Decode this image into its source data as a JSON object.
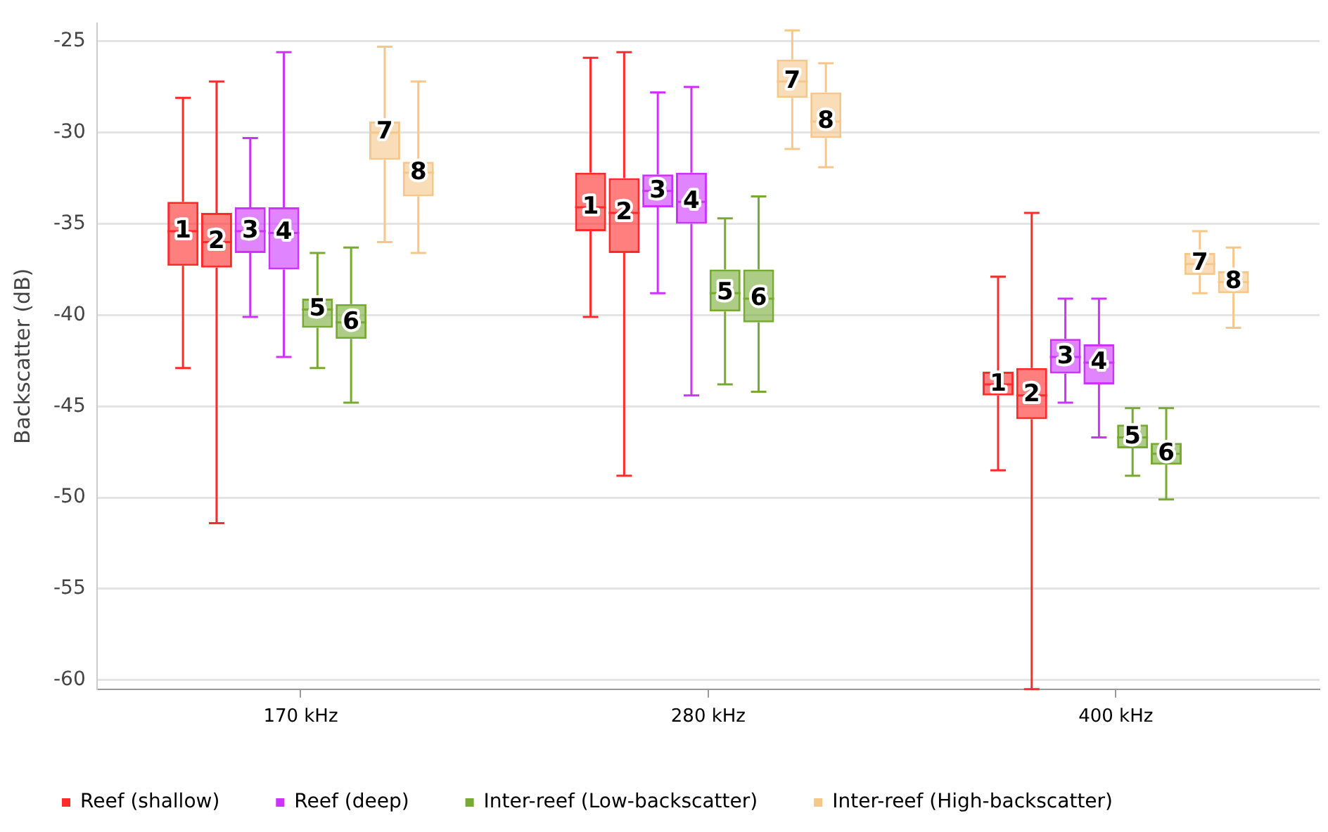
{
  "chart_data": {
    "type": "box",
    "ylabel": "Backscatter (dB)",
    "categories": [
      "170 kHz",
      "280 kHz",
      "400 kHz"
    ],
    "ylim": [
      -60.5,
      -24
    ],
    "yticks": [
      -25,
      -30,
      -35,
      -40,
      -45,
      -50,
      -55,
      -60
    ],
    "grid": "y",
    "legend": "bottom",
    "series": [
      {
        "name": "Reef (shallow)",
        "color": "#ff2a2a",
        "value_labels": [
          "1",
          "1",
          "1"
        ],
        "boxes": [
          {
            "low": -42.9,
            "q1": -37.3,
            "median": -35.4,
            "q3": -33.8,
            "high": -28.1
          },
          {
            "low": -40.1,
            "q1": -35.4,
            "median": -34.1,
            "q3": -32.2,
            "high": -25.9
          },
          {
            "low": -48.5,
            "q1": -44.4,
            "median": -43.8,
            "q3": -43.1,
            "high": -37.9
          }
        ]
      },
      {
        "color": "#ff2a2a",
        "value_labels": [
          "2",
          "2",
          "2"
        ],
        "boxes": [
          {
            "low": -51.4,
            "q1": -37.4,
            "median": -36.0,
            "q3": -34.4,
            "high": -27.2
          },
          {
            "low": -48.8,
            "q1": -36.6,
            "median": -34.4,
            "q3": -32.5,
            "high": -25.6
          },
          {
            "low": -60.5,
            "q1": -45.7,
            "median": -44.4,
            "q3": -42.9,
            "high": -34.4
          }
        ]
      },
      {
        "name": "Reef (deep)",
        "color": "#cc33ff",
        "value_labels": [
          "3",
          "3",
          "3"
        ],
        "boxes": [
          {
            "low": -40.1,
            "q1": -36.6,
            "median": -35.4,
            "q3": -34.1,
            "high": -30.3
          },
          {
            "low": -38.8,
            "q1": -34.1,
            "median": -33.2,
            "q3": -32.3,
            "high": -27.8
          },
          {
            "low": -44.8,
            "q1": -43.2,
            "median": -42.3,
            "q3": -41.3,
            "high": -39.1
          }
        ]
      },
      {
        "color": "#cc33ff",
        "value_labels": [
          "4",
          "4",
          "4"
        ],
        "boxes": [
          {
            "low": -42.3,
            "q1": -37.5,
            "median": -35.5,
            "q3": -34.1,
            "high": -25.6
          },
          {
            "low": -44.4,
            "q1": -35.0,
            "median": -33.8,
            "q3": -32.2,
            "high": -27.5
          },
          {
            "low": -46.7,
            "q1": -43.8,
            "median": -42.6,
            "q3": -41.6,
            "high": -39.1
          }
        ]
      },
      {
        "name": "Inter-reef (Low-backscatter)",
        "color": "#77aa33",
        "value_labels": [
          "5",
          "5",
          "5"
        ],
        "boxes": [
          {
            "low": -42.9,
            "q1": -40.7,
            "median": -39.7,
            "q3": -39.1,
            "high": -36.6
          },
          {
            "low": -43.8,
            "q1": -39.8,
            "median": -38.8,
            "q3": -37.5,
            "high": -34.7
          },
          {
            "low": -48.8,
            "q1": -47.3,
            "median": -46.7,
            "q3": -46.0,
            "high": -45.1
          }
        ]
      },
      {
        "color": "#77aa33",
        "value_labels": [
          "6",
          "6",
          "6"
        ],
        "boxes": [
          {
            "low": -44.8,
            "q1": -41.3,
            "median": -40.4,
            "q3": -39.4,
            "high": -36.3
          },
          {
            "low": -44.2,
            "q1": -40.4,
            "median": -39.1,
            "q3": -37.5,
            "high": -33.5
          },
          {
            "low": -50.1,
            "q1": -48.2,
            "median": -47.6,
            "q3": -47.0,
            "high": -45.1
          }
        ]
      },
      {
        "name": "Inter-reef (High-backscatter)",
        "color": "#f5c78a",
        "value_labels": [
          "7",
          "7",
          "7"
        ],
        "boxes": [
          {
            "low": -36.0,
            "q1": -31.5,
            "median": -30.0,
            "q3": -29.4,
            "high": -25.3
          },
          {
            "low": -30.9,
            "q1": -28.1,
            "median": -27.2,
            "q3": -26.0,
            "high": -24.4
          },
          {
            "low": -38.8,
            "q1": -37.8,
            "median": -37.2,
            "q3": -36.6,
            "high": -35.4
          }
        ]
      },
      {
        "color": "#f5c78a",
        "value_labels": [
          "8",
          "8",
          "8"
        ],
        "boxes": [
          {
            "low": -36.6,
            "q1": -33.5,
            "median": -32.2,
            "q3": -31.6,
            "high": -27.2
          },
          {
            "low": -31.9,
            "q1": -30.3,
            "median": -29.4,
            "q3": -27.8,
            "high": -26.2
          },
          {
            "low": -40.7,
            "q1": -38.8,
            "median": -38.2,
            "q3": -37.6,
            "high": -36.3
          }
        ]
      }
    ]
  }
}
